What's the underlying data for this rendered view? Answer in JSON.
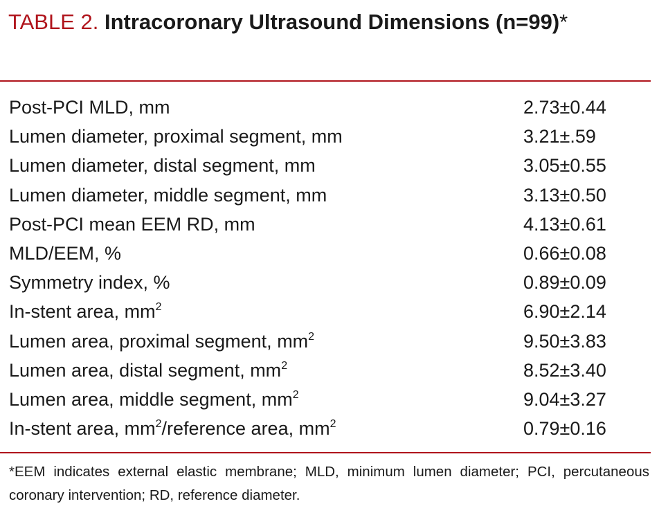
{
  "title": {
    "label": "TABLE 2.",
    "main": "Intracoronary Ultrasound Dimensions (n=99)",
    "marker": "*"
  },
  "rows": [
    {
      "name": "Post-PCI MLD, mm",
      "value": "2.73±0.44"
    },
    {
      "name": "Lumen diameter, proximal segment, mm",
      "value": "3.21±.59"
    },
    {
      "name": "Lumen diameter, distal segment, mm",
      "value": "3.05±0.55"
    },
    {
      "name": "Lumen diameter, middle segment, mm",
      "value": "3.13±0.50"
    },
    {
      "name": "Post-PCI mean EEM RD, mm",
      "value": "4.13±0.61"
    },
    {
      "name": "MLD/EEM, %",
      "value": "0.66±0.08"
    },
    {
      "name": "Symmetry index, %",
      "value": "0.89±0.09"
    },
    {
      "name": "In-stent area, mm",
      "sup": "2",
      "value": "6.90±2.14"
    },
    {
      "name": "Lumen area, proximal segment, mm",
      "sup": "2",
      "value": "9.50±3.83"
    },
    {
      "name": "Lumen area, distal segment, mm",
      "sup": "2",
      "value": "8.52±3.40"
    },
    {
      "name": "Lumen area, middle segment, mm",
      "sup": "2",
      "value": "9.04±3.27"
    },
    {
      "name": "In-stent area, mm",
      "sup": "2",
      "name_b": "/reference area, mm",
      "sup_b": "2",
      "value": "0.79±0.16"
    }
  ],
  "footnote": "*EEM indicates external elastic membrane; MLD, minimum lumen diameter; PCI, percutaneous coronary intervention; RD, reference diameter.",
  "colors": {
    "accent": "#b0141c",
    "text": "#1a1a1a"
  }
}
